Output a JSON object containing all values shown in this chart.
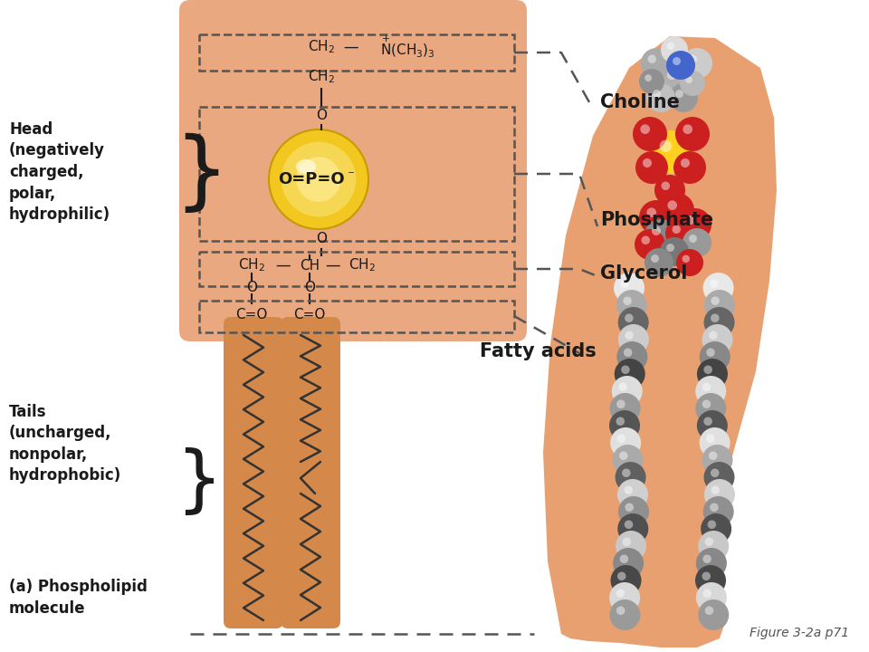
{
  "bg_color": "#ffffff",
  "salmon_head": "#EAA880",
  "salmon_tail": "#D4894A",
  "salmon_3d": "#E8A070",
  "yellow_ball": "#F0C830",
  "yellow_ball_edge": "#C89A00",
  "dark_text": "#1a1a1a",
  "dash_color": "#555555",
  "figure_caption": "Figure 3-2a p71",
  "title_head": "Head\n(negatively\ncharged,\npolar,\nhydrophilic)",
  "title_tails": "Tails\n(uncharged,\nnonpolar,\nhydrophobic)",
  "title_caption": "(a) Phospholipid\nmolecule",
  "label_choline": "Choline",
  "label_phosphate": "Phosphate",
  "label_glycerol": "Glycerol",
  "label_fatty": "Fatty acids"
}
